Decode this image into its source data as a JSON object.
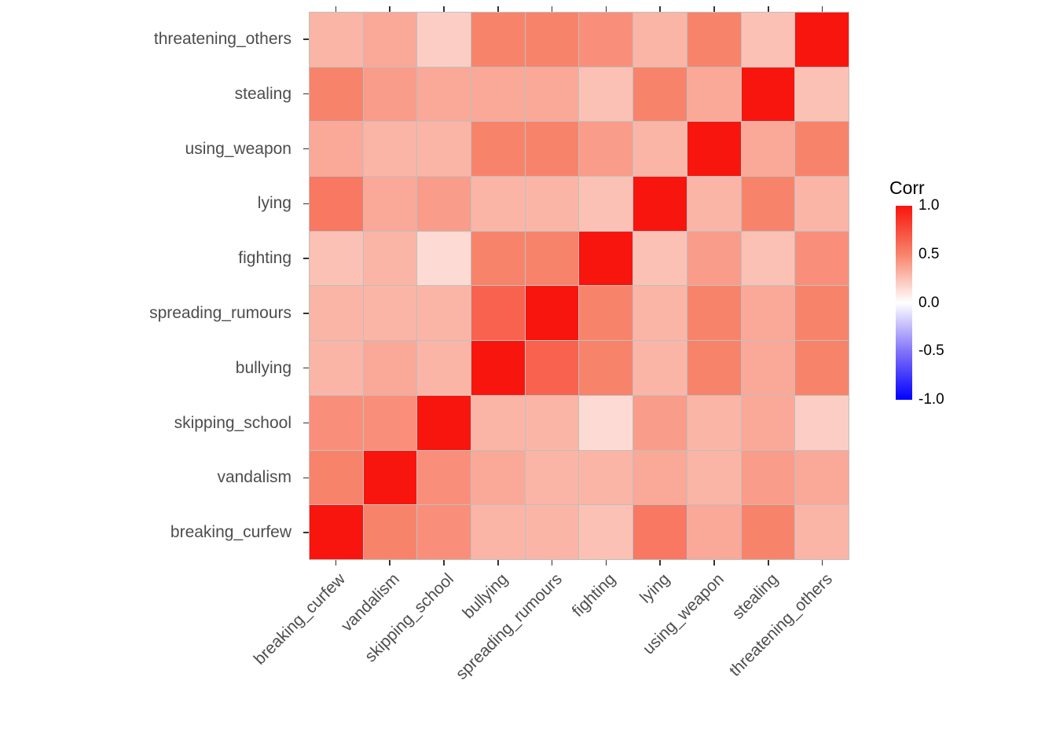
{
  "chart_data": {
    "type": "heatmap",
    "title": "",
    "legend_title": "Corr",
    "categories": [
      "breaking_curfew",
      "vandalism",
      "skipping_school",
      "bullying",
      "spreading_rumours",
      "fighting",
      "lying",
      "using_weapon",
      "stealing",
      "threatening_others"
    ],
    "matrix": [
      [
        1.0,
        0.5,
        0.45,
        0.3,
        0.3,
        0.25,
        0.55,
        0.35,
        0.5,
        0.3
      ],
      [
        0.5,
        1.0,
        0.45,
        0.35,
        0.3,
        0.3,
        0.35,
        0.3,
        0.4,
        0.35
      ],
      [
        0.45,
        0.45,
        1.0,
        0.3,
        0.3,
        0.15,
        0.4,
        0.3,
        0.35,
        0.2
      ],
      [
        0.3,
        0.35,
        0.3,
        1.0,
        0.65,
        0.5,
        0.3,
        0.5,
        0.35,
        0.5
      ],
      [
        0.3,
        0.3,
        0.3,
        0.65,
        1.0,
        0.5,
        0.3,
        0.5,
        0.35,
        0.5
      ],
      [
        0.25,
        0.3,
        0.15,
        0.5,
        0.5,
        1.0,
        0.25,
        0.4,
        0.25,
        0.45
      ],
      [
        0.55,
        0.35,
        0.4,
        0.3,
        0.3,
        0.25,
        1.0,
        0.3,
        0.5,
        0.3
      ],
      [
        0.35,
        0.3,
        0.3,
        0.5,
        0.5,
        0.4,
        0.3,
        1.0,
        0.35,
        0.5
      ],
      [
        0.5,
        0.4,
        0.35,
        0.35,
        0.35,
        0.25,
        0.5,
        0.35,
        1.0,
        0.25
      ],
      [
        0.3,
        0.35,
        0.2,
        0.5,
        0.5,
        0.45,
        0.3,
        0.5,
        0.25,
        1.0
      ]
    ],
    "scale": {
      "limits": [
        -1.0,
        1.0
      ],
      "ticks": [
        1.0,
        0.5,
        0.0,
        -0.5,
        -1.0
      ],
      "tick_labels": [
        "1.0",
        "0.5",
        "0.0",
        "-0.5",
        "-1.0"
      ],
      "stops": [
        {
          "value": -1.0,
          "color": "#0000FF"
        },
        {
          "value": -0.5,
          "color": "#8373F8"
        },
        {
          "value": 0.0,
          "color": "#FFFFFF"
        },
        {
          "value": 0.5,
          "color": "#F8836B"
        },
        {
          "value": 1.0,
          "color": "#F8150D"
        }
      ]
    },
    "axis_text_color": "#4D4D4D",
    "cell_border_color": "#BFBFBF",
    "legend_position": "right",
    "grid": false
  }
}
